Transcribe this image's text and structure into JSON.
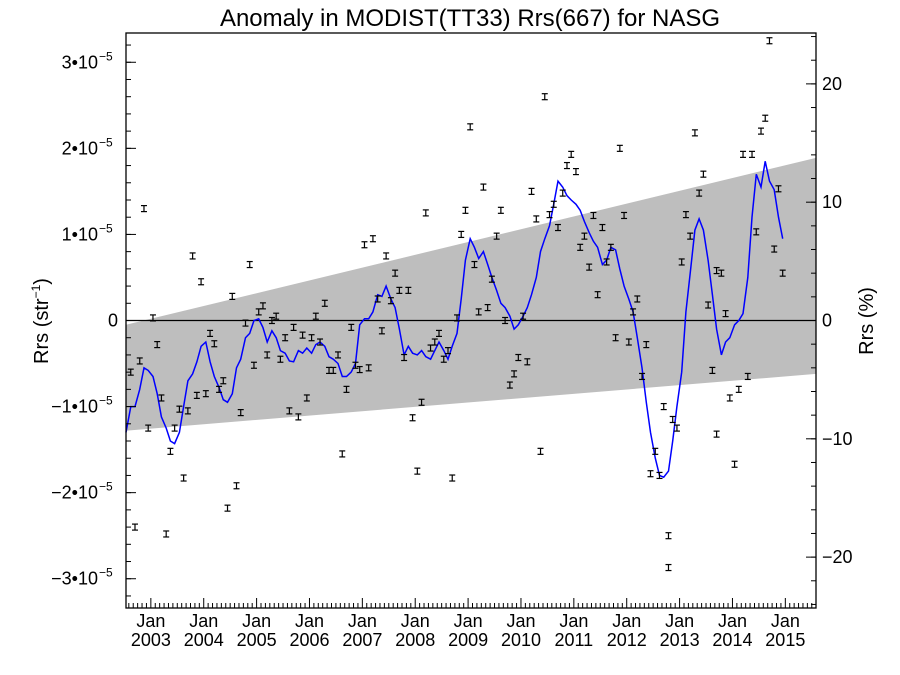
{
  "chart_data": {
    "type": "scatter",
    "title": "Anomaly in MODIST(TT33) Rrs(667) for NASG",
    "ylabel": "Rrs (str",
    "ylabel_sup": "−1",
    "ylabel_close": ")",
    "y2label": "Rrs (%)",
    "xlim": [
      2002.53,
      2015.58
    ],
    "ylim": [
      -3.34e-05,
      3.34e-05
    ],
    "y2lim": [
      -24.3,
      24.3
    ],
    "left_ticks": [
      {
        "value": 3e-05,
        "label": "3•10"
      },
      {
        "value": 2e-05,
        "label": "2•10"
      },
      {
        "value": 1e-05,
        "label": "1•10"
      },
      {
        "value": 0,
        "label": "0"
      },
      {
        "value": -1e-05,
        "label": "−1•10"
      },
      {
        "value": -2e-05,
        "label": "−2•10"
      },
      {
        "value": -3e-05,
        "label": "−3•10"
      }
    ],
    "left_tick_exponent": "−5",
    "right_ticks": [
      {
        "value": 20,
        "label": "20"
      },
      {
        "value": 10,
        "label": "10"
      },
      {
        "value": 0,
        "label": "0"
      },
      {
        "value": -10,
        "label": "−10"
      },
      {
        "value": -20,
        "label": "−20"
      }
    ],
    "x_ticks": [
      {
        "value": 2003.0,
        "month": "Jan",
        "year": "2003"
      },
      {
        "value": 2004.0,
        "month": "Jan",
        "year": "2004"
      },
      {
        "value": 2005.0,
        "month": "Jan",
        "year": "2005"
      },
      {
        "value": 2006.0,
        "month": "Jan",
        "year": "2006"
      },
      {
        "value": 2007.0,
        "month": "Jan",
        "year": "2007"
      },
      {
        "value": 2008.0,
        "month": "Jan",
        "year": "2008"
      },
      {
        "value": 2009.0,
        "month": "Jan",
        "year": "2009"
      },
      {
        "value": 2010.0,
        "month": "Jan",
        "year": "2010"
      },
      {
        "value": 2011.0,
        "month": "Jan",
        "year": "2011"
      },
      {
        "value": 2012.0,
        "month": "Jan",
        "year": "2012"
      },
      {
        "value": 2013.0,
        "month": "Jan",
        "year": "2013"
      },
      {
        "value": 2014.0,
        "month": "Jan",
        "year": "2014"
      },
      {
        "value": 2015.0,
        "month": "Jan",
        "year": "2015"
      }
    ],
    "band": {
      "start": {
        "x": 2002.53,
        "upper": -5e-07,
        "lower": -1.28e-05
      },
      "end": {
        "x": 2015.58,
        "upper": 1.89e-05,
        "lower": -6.2e-06
      },
      "color": "#bebebe"
    },
    "points": [
      {
        "x": 2002.62,
        "y": -6e-06
      },
      {
        "x": 2002.7,
        "y": -2.4e-05
      },
      {
        "x": 2002.79,
        "y": -4.7e-06
      },
      {
        "x": 2002.87,
        "y": 1.3e-05
      },
      {
        "x": 2002.95,
        "y": -1.25e-05
      },
      {
        "x": 2003.04,
        "y": 3e-07
      },
      {
        "x": 2003.12,
        "y": -2.8e-06
      },
      {
        "x": 2003.2,
        "y": -9e-06
      },
      {
        "x": 2003.29,
        "y": -2.48e-05
      },
      {
        "x": 2003.37,
        "y": -1.52e-05
      },
      {
        "x": 2003.45,
        "y": -1.25e-05
      },
      {
        "x": 2003.54,
        "y": -1.03e-05
      },
      {
        "x": 2003.62,
        "y": -1.83e-05
      },
      {
        "x": 2003.7,
        "y": -1.05e-05
      },
      {
        "x": 2003.79,
        "y": 7.5e-06
      },
      {
        "x": 2003.87,
        "y": -8.7e-06
      },
      {
        "x": 2003.95,
        "y": 4.5e-06
      },
      {
        "x": 2004.04,
        "y": -8.5e-06
      },
      {
        "x": 2004.12,
        "y": -1.5e-06
      },
      {
        "x": 2004.2,
        "y": -2.7e-06
      },
      {
        "x": 2004.29,
        "y": -8e-06
      },
      {
        "x": 2004.37,
        "y": -7e-06
      },
      {
        "x": 2004.45,
        "y": -2.18e-05
      },
      {
        "x": 2004.54,
        "y": 2.8e-06
      },
      {
        "x": 2004.62,
        "y": -1.92e-05
      },
      {
        "x": 2004.7,
        "y": -1.07e-05
      },
      {
        "x": 2004.79,
        "y": -3e-07
      },
      {
        "x": 2004.87,
        "y": 6.5e-06
      },
      {
        "x": 2004.95,
        "y": -5.2e-06
      },
      {
        "x": 2005.04,
        "y": 1e-06
      },
      {
        "x": 2005.12,
        "y": 1.7e-06
      },
      {
        "x": 2005.2,
        "y": -4e-06
      },
      {
        "x": 2005.29,
        "y": 0.0
      },
      {
        "x": 2005.37,
        "y": 5e-07
      },
      {
        "x": 2005.45,
        "y": -4.5e-06
      },
      {
        "x": 2005.54,
        "y": -2e-06
      },
      {
        "x": 2005.62,
        "y": -1.05e-05
      },
      {
        "x": 2005.7,
        "y": -8e-07
      },
      {
        "x": 2005.79,
        "y": -1.12e-05
      },
      {
        "x": 2005.87,
        "y": -1.7e-06
      },
      {
        "x": 2005.95,
        "y": -9e-06
      },
      {
        "x": 2006.04,
        "y": -2e-06
      },
      {
        "x": 2006.12,
        "y": 5e-07
      },
      {
        "x": 2006.2,
        "y": -2.5e-06
      },
      {
        "x": 2006.29,
        "y": 2e-06
      },
      {
        "x": 2006.37,
        "y": -5.8e-06
      },
      {
        "x": 2006.45,
        "y": -5.8e-06
      },
      {
        "x": 2006.54,
        "y": -4e-06
      },
      {
        "x": 2006.62,
        "y": -1.55e-05
      },
      {
        "x": 2006.7,
        "y": -8e-06
      },
      {
        "x": 2006.79,
        "y": -8e-07
      },
      {
        "x": 2006.87,
        "y": -5.2e-06
      },
      {
        "x": 2006.95,
        "y": -5.7e-06
      },
      {
        "x": 2007.04,
        "y": 8.8e-06
      },
      {
        "x": 2007.12,
        "y": -5.5e-06
      },
      {
        "x": 2007.2,
        "y": 9.5e-06
      },
      {
        "x": 2007.29,
        "y": 2.5e-06
      },
      {
        "x": 2007.37,
        "y": -1.2e-06
      },
      {
        "x": 2007.45,
        "y": 7.5e-06
      },
      {
        "x": 2007.54,
        "y": 2.3e-06
      },
      {
        "x": 2007.62,
        "y": 5.5e-06
      },
      {
        "x": 2007.7,
        "y": 3.5e-06
      },
      {
        "x": 2007.79,
        "y": -4.3e-06
      },
      {
        "x": 2007.87,
        "y": 3.5e-06
      },
      {
        "x": 2007.95,
        "y": -1.13e-05
      },
      {
        "x": 2008.04,
        "y": -1.75e-05
      },
      {
        "x": 2008.12,
        "y": -9.5e-06
      },
      {
        "x": 2008.2,
        "y": 1.25e-05
      },
      {
        "x": 2008.29,
        "y": -3.2e-06
      },
      {
        "x": 2008.37,
        "y": -2.5e-06
      },
      {
        "x": 2008.45,
        "y": -1.5e-06
      },
      {
        "x": 2008.54,
        "y": -4.5e-06
      },
      {
        "x": 2008.62,
        "y": -3.5e-06
      },
      {
        "x": 2008.7,
        "y": -1.83e-05
      },
      {
        "x": 2008.79,
        "y": 3e-07
      },
      {
        "x": 2008.87,
        "y": 1e-05
      },
      {
        "x": 2008.95,
        "y": 1.28e-05
      },
      {
        "x": 2009.04,
        "y": 2.25e-05
      },
      {
        "x": 2009.12,
        "y": 6.5e-06
      },
      {
        "x": 2009.2,
        "y": 1e-06
      },
      {
        "x": 2009.29,
        "y": 1.55e-05
      },
      {
        "x": 2009.37,
        "y": 1.5e-06
      },
      {
        "x": 2009.45,
        "y": 4.8e-06
      },
      {
        "x": 2009.54,
        "y": 9.8e-06
      },
      {
        "x": 2009.62,
        "y": 1.28e-05
      },
      {
        "x": 2009.7,
        "y": 0.0
      },
      {
        "x": 2009.79,
        "y": -7.5e-06
      },
      {
        "x": 2009.87,
        "y": -6.2e-06
      },
      {
        "x": 2009.95,
        "y": -4.3e-06
      },
      {
        "x": 2010.04,
        "y": 5e-07
      },
      {
        "x": 2010.12,
        "y": -4.8e-06
      },
      {
        "x": 2010.2,
        "y": 1.5e-05
      },
      {
        "x": 2010.29,
        "y": 1.18e-05
      },
      {
        "x": 2010.37,
        "y": -1.52e-05
      },
      {
        "x": 2010.45,
        "y": 2.6e-05
      },
      {
        "x": 2010.54,
        "y": 1.23e-05
      },
      {
        "x": 2010.62,
        "y": 1.35e-05
      },
      {
        "x": 2010.7,
        "y": 1.08e-05
      },
      {
        "x": 2010.79,
        "y": 1.48e-05
      },
      {
        "x": 2010.87,
        "y": 1.8e-05
      },
      {
        "x": 2010.95,
        "y": 1.93e-05
      },
      {
        "x": 2011.04,
        "y": 1.73e-05
      },
      {
        "x": 2011.12,
        "y": 8.5e-06
      },
      {
        "x": 2011.2,
        "y": 9.8e-06
      },
      {
        "x": 2011.29,
        "y": 6.2e-06
      },
      {
        "x": 2011.37,
        "y": 1.22e-05
      },
      {
        "x": 2011.45,
        "y": 3e-06
      },
      {
        "x": 2011.54,
        "y": 1.08e-05
      },
      {
        "x": 2011.62,
        "y": 6.8e-06
      },
      {
        "x": 2011.7,
        "y": 8.5e-06
      },
      {
        "x": 2011.79,
        "y": -2e-06
      },
      {
        "x": 2011.87,
        "y": 2e-05
      },
      {
        "x": 2011.95,
        "y": 1.22e-05
      },
      {
        "x": 2012.04,
        "y": -2.5e-06
      },
      {
        "x": 2012.12,
        "y": 1e-06
      },
      {
        "x": 2012.2,
        "y": 2.5e-06
      },
      {
        "x": 2012.29,
        "y": -6.5e-06
      },
      {
        "x": 2012.37,
        "y": -2.8e-06
      },
      {
        "x": 2012.45,
        "y": -1.78e-05
      },
      {
        "x": 2012.54,
        "y": -1.52e-05
      },
      {
        "x": 2012.62,
        "y": -1.8e-05
      },
      {
        "x": 2012.7,
        "y": -1e-05
      },
      {
        "x": 2012.79,
        "y": -2.5e-05
      },
      {
        "x": 2012.79,
        "y": -2.87e-05
      },
      {
        "x": 2012.87,
        "y": -1.15e-05
      },
      {
        "x": 2012.95,
        "y": -1.25e-05
      },
      {
        "x": 2013.04,
        "y": 6.8e-06
      },
      {
        "x": 2013.12,
        "y": 1.23e-05
      },
      {
        "x": 2013.2,
        "y": 9.8e-06
      },
      {
        "x": 2013.29,
        "y": 2.18e-05
      },
      {
        "x": 2013.37,
        "y": 1.48e-05
      },
      {
        "x": 2013.45,
        "y": 1.7e-05
      },
      {
        "x": 2013.54,
        "y": 1.8e-06
      },
      {
        "x": 2013.62,
        "y": -5.8e-06
      },
      {
        "x": 2013.7,
        "y": -1.32e-05
      },
      {
        "x": 2013.7,
        "y": 5.8e-06
      },
      {
        "x": 2013.79,
        "y": 5.5e-06
      },
      {
        "x": 2013.87,
        "y": 8e-07
      },
      {
        "x": 2013.95,
        "y": -9e-06
      },
      {
        "x": 2014.04,
        "y": -1.67e-05
      },
      {
        "x": 2014.12,
        "y": -8e-06
      },
      {
        "x": 2014.2,
        "y": 1.93e-05
      },
      {
        "x": 2014.29,
        "y": -6.5e-06
      },
      {
        "x": 2014.37,
        "y": 1.93e-05
      },
      {
        "x": 2014.45,
        "y": 1.03e-05
      },
      {
        "x": 2014.54,
        "y": 2.2e-05
      },
      {
        "x": 2014.62,
        "y": 2.35e-05
      },
      {
        "x": 2014.7,
        "y": 3.25e-05
      },
      {
        "x": 2014.79,
        "y": 8.3e-06
      },
      {
        "x": 2014.87,
        "y": 1.53e-05
      },
      {
        "x": 2014.95,
        "y": 5.5e-06
      }
    ],
    "line_color": "#0000ff",
    "line": [
      [
        2002.53,
        -1.3e-05
      ],
      [
        2002.62,
        -1e-05
      ],
      [
        2002.7,
        -1e-05
      ],
      [
        2002.79,
        -8e-06
      ],
      [
        2002.87,
        -5.5e-06
      ],
      [
        2002.95,
        -5.8e-06
      ],
      [
        2003.04,
        -6.5e-06
      ],
      [
        2003.12,
        -8.5e-06
      ],
      [
        2003.2,
        -1.12e-05
      ],
      [
        2003.29,
        -1.25e-05
      ],
      [
        2003.37,
        -1.4e-05
      ],
      [
        2003.45,
        -1.43e-05
      ],
      [
        2003.54,
        -1.3e-05
      ],
      [
        2003.62,
        -1e-05
      ],
      [
        2003.7,
        -7e-06
      ],
      [
        2003.79,
        -6.2e-06
      ],
      [
        2003.87,
        -4.8e-06
      ],
      [
        2003.95,
        -3e-06
      ],
      [
        2004.04,
        -2.5e-06
      ],
      [
        2004.12,
        -4.8e-06
      ],
      [
        2004.2,
        -6.5e-06
      ],
      [
        2004.29,
        -7.8e-06
      ],
      [
        2004.37,
        -9.2e-06
      ],
      [
        2004.45,
        -9.5e-06
      ],
      [
        2004.54,
        -8.5e-06
      ],
      [
        2004.62,
        -5.5e-06
      ],
      [
        2004.7,
        -4.5e-06
      ],
      [
        2004.79,
        -2e-06
      ],
      [
        2004.87,
        -1.5e-06
      ],
      [
        2004.95,
        0.0
      ],
      [
        2005.04,
        2e-07
      ],
      [
        2005.12,
        -8e-07
      ],
      [
        2005.2,
        -2.5e-06
      ],
      [
        2005.29,
        -1.2e-06
      ],
      [
        2005.37,
        -2e-06
      ],
      [
        2005.45,
        -3.5e-06
      ],
      [
        2005.54,
        -3.8e-06
      ],
      [
        2005.62,
        -4.7e-06
      ],
      [
        2005.7,
        -4.8e-06
      ],
      [
        2005.79,
        -3.5e-06
      ],
      [
        2005.87,
        -3.8e-06
      ],
      [
        2005.95,
        -3.2e-06
      ],
      [
        2006.04,
        -3.8e-06
      ],
      [
        2006.12,
        -2.8e-06
      ],
      [
        2006.2,
        -2.5e-06
      ],
      [
        2006.29,
        -3e-06
      ],
      [
        2006.37,
        -4.2e-06
      ],
      [
        2006.45,
        -4.5e-06
      ],
      [
        2006.54,
        -5e-06
      ],
      [
        2006.62,
        -6.5e-06
      ],
      [
        2006.7,
        -6.5e-06
      ],
      [
        2006.79,
        -6e-06
      ],
      [
        2006.87,
        -5e-06
      ],
      [
        2006.95,
        -5e-07
      ],
      [
        2007.04,
        2e-07
      ],
      [
        2007.12,
        2e-07
      ],
      [
        2007.2,
        1e-06
      ],
      [
        2007.29,
        3e-06
      ],
      [
        2007.37,
        2.8e-06
      ],
      [
        2007.45,
        4e-06
      ],
      [
        2007.54,
        2.5e-06
      ],
      [
        2007.62,
        1.5e-06
      ],
      [
        2007.7,
        -1e-06
      ],
      [
        2007.79,
        -4e-06
      ],
      [
        2007.87,
        -3e-06
      ],
      [
        2007.95,
        -3.8e-06
      ],
      [
        2008.04,
        -4e-06
      ],
      [
        2008.12,
        -3.5e-06
      ],
      [
        2008.2,
        -4.2e-06
      ],
      [
        2008.29,
        -4.5e-06
      ],
      [
        2008.37,
        -3.5e-06
      ],
      [
        2008.45,
        -2.5e-06
      ],
      [
        2008.54,
        -3.5e-06
      ],
      [
        2008.62,
        -4.5e-06
      ],
      [
        2008.7,
        -3e-06
      ],
      [
        2008.79,
        -1.5e-06
      ],
      [
        2008.87,
        2.5e-06
      ],
      [
        2008.95,
        7e-06
      ],
      [
        2009.04,
        9.5e-06
      ],
      [
        2009.12,
        8.5e-06
      ],
      [
        2009.2,
        7.2e-06
      ],
      [
        2009.29,
        8e-06
      ],
      [
        2009.37,
        6.5e-06
      ],
      [
        2009.45,
        5e-06
      ],
      [
        2009.54,
        3.5e-06
      ],
      [
        2009.62,
        2e-06
      ],
      [
        2009.7,
        1.5e-06
      ],
      [
        2009.79,
        5e-07
      ],
      [
        2009.87,
        -1e-06
      ],
      [
        2009.95,
        -5e-07
      ],
      [
        2010.04,
        5e-07
      ],
      [
        2010.12,
        1.5e-06
      ],
      [
        2010.2,
        3e-06
      ],
      [
        2010.29,
        5e-06
      ],
      [
        2010.37,
        8e-06
      ],
      [
        2010.45,
        9.5e-06
      ],
      [
        2010.54,
        1.1e-05
      ],
      [
        2010.62,
        1.35e-05
      ],
      [
        2010.7,
        1.62e-05
      ],
      [
        2010.79,
        1.55e-05
      ],
      [
        2010.87,
        1.45e-05
      ],
      [
        2010.95,
        1.4e-05
      ],
      [
        2011.04,
        1.35e-05
      ],
      [
        2011.12,
        1.28e-05
      ],
      [
        2011.2,
        1.15e-05
      ],
      [
        2011.29,
        1.02e-05
      ],
      [
        2011.37,
        9.2e-06
      ],
      [
        2011.45,
        8.5e-06
      ],
      [
        2011.54,
        6.5e-06
      ],
      [
        2011.62,
        7e-06
      ],
      [
        2011.7,
        8.5e-06
      ],
      [
        2011.79,
        8.2e-06
      ],
      [
        2011.87,
        6e-06
      ],
      [
        2011.95,
        4e-06
      ],
      [
        2012.04,
        2.5e-06
      ],
      [
        2012.12,
        1e-06
      ],
      [
        2012.2,
        -2e-06
      ],
      [
        2012.29,
        -5.5e-06
      ],
      [
        2012.37,
        -9.5e-06
      ],
      [
        2012.45,
        -1.3e-05
      ],
      [
        2012.54,
        -1.6e-05
      ],
      [
        2012.62,
        -1.8e-05
      ],
      [
        2012.7,
        -1.82e-05
      ],
      [
        2012.79,
        -1.75e-05
      ],
      [
        2012.87,
        -1.4e-05
      ],
      [
        2012.95,
        -1e-05
      ],
      [
        2013.04,
        -6e-06
      ],
      [
        2013.12,
        1e-06
      ],
      [
        2013.2,
        5.5e-06
      ],
      [
        2013.29,
        1.05e-05
      ],
      [
        2013.37,
        1.18e-05
      ],
      [
        2013.45,
        1.05e-05
      ],
      [
        2013.54,
        7e-06
      ],
      [
        2013.62,
        3e-06
      ],
      [
        2013.7,
        -1e-06
      ],
      [
        2013.79,
        -4e-06
      ],
      [
        2013.87,
        -2.5e-06
      ],
      [
        2013.95,
        -2e-06
      ],
      [
        2014.04,
        -5e-07
      ],
      [
        2014.12,
        0.0
      ],
      [
        2014.2,
        8e-07
      ],
      [
        2014.29,
        5e-06
      ],
      [
        2014.37,
        1.2e-05
      ],
      [
        2014.45,
        1.7e-05
      ],
      [
        2014.54,
        1.55e-05
      ],
      [
        2014.62,
        1.85e-05
      ],
      [
        2014.7,
        1.62e-05
      ],
      [
        2014.79,
        1.52e-05
      ],
      [
        2014.87,
        1.2e-05
      ],
      [
        2014.95,
        9.5e-06
      ]
    ]
  }
}
